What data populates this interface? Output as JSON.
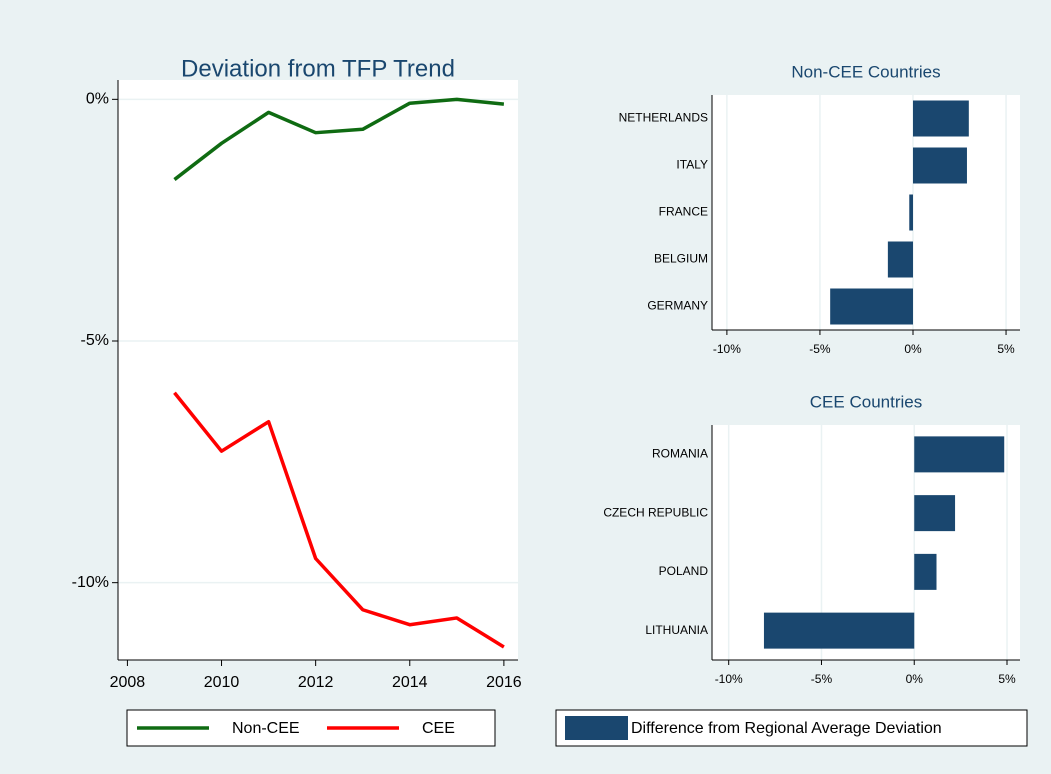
{
  "chart_data": [
    {
      "type": "line",
      "title": "Deviation from TFP Trend",
      "x": [
        2009,
        2010,
        2011,
        2012,
        2013,
        2014,
        2015,
        2016
      ],
      "series": [
        {
          "name": "Non-CEE",
          "color": "#0f6b12",
          "values": [
            -1.66,
            -0.91,
            -0.27,
            -0.69,
            -0.62,
            -0.08,
            0.0,
            -0.1
          ]
        },
        {
          "name": "CEE",
          "color": "#ff0000",
          "values": [
            -6.07,
            -7.28,
            -6.67,
            -9.5,
            -10.56,
            -10.87,
            -10.73,
            -11.33
          ]
        }
      ],
      "xlim": [
        2007.8,
        2016.3
      ],
      "xticks": [
        2008,
        2010,
        2012,
        2014,
        2016
      ],
      "ylim": [
        -11.6,
        0.4
      ],
      "yticks": [
        {
          "value": 0,
          "label": "0%"
        },
        {
          "value": -5,
          "label": "-5%"
        },
        {
          "value": -10,
          "label": "-10%"
        }
      ],
      "grid": true
    },
    {
      "type": "barh",
      "title": "Non-CEE Countries",
      "categories": [
        "NETHERLANDS",
        "ITALY",
        "FRANCE",
        "BELGIUM",
        "GERMANY"
      ],
      "series": [
        {
          "name": "Difference from Regional Average Deviation",
          "color": "#1a476f",
          "values": [
            3.0,
            2.9,
            -0.2,
            -1.35,
            -4.45
          ]
        }
      ],
      "xlim": [
        -10.8,
        5.75
      ],
      "xticks": [
        {
          "value": -10,
          "label": "-10%"
        },
        {
          "value": -5,
          "label": "-5%"
        },
        {
          "value": 0,
          "label": "0%"
        },
        {
          "value": 5,
          "label": "5%"
        }
      ],
      "grid": true
    },
    {
      "type": "barh",
      "title": "CEE Countries",
      "categories": [
        "ROMANIA",
        "CZECH REPUBLIC",
        "POLAND",
        "LITHUANIA"
      ],
      "values": [
        4.85,
        2.2,
        1.2,
        -8.1
      ],
      "color": "#1a476f",
      "xlim": [
        -10.9,
        5.7
      ],
      "xticks": [
        {
          "value": -10,
          "label": "-10%"
        },
        {
          "value": -5,
          "label": "-5%"
        },
        {
          "value": 0,
          "label": "0%"
        },
        {
          "value": 5,
          "label": "5%"
        }
      ],
      "grid": true
    }
  ]
}
